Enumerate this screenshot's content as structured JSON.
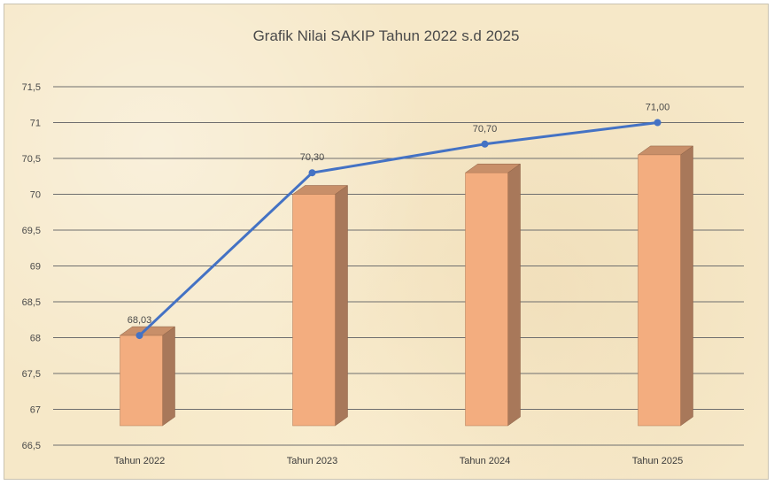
{
  "chart_data": {
    "type": "bar",
    "title": "Grafik Nilai SAKIP Tahun 2022 s.d 2025",
    "categories": [
      "Tahun 2022",
      "Tahun 2023",
      "Tahun 2024",
      "Tahun 2025"
    ],
    "series": [
      {
        "type": "bar",
        "values": [
          68.03,
          70.0,
          70.3,
          70.55
        ]
      },
      {
        "type": "line",
        "values": [
          68.03,
          70.3,
          70.7,
          71.0
        ],
        "labels": [
          "68,03",
          "70,30",
          "70,70",
          "71,00"
        ]
      }
    ],
    "yticks": [
      "66,5",
      "67",
      "67,5",
      "68",
      "68,5",
      "69",
      "69,5",
      "70",
      "70,5",
      "71",
      "71,5"
    ],
    "ylim": [
      66.5,
      71.5
    ],
    "grid": true,
    "colors": {
      "bar_front": "#f3ad7f",
      "bar_side": "#a8785a",
      "bar_top": "#c88f69",
      "line": "#4472c4",
      "grid": "#6e6e6e"
    }
  }
}
